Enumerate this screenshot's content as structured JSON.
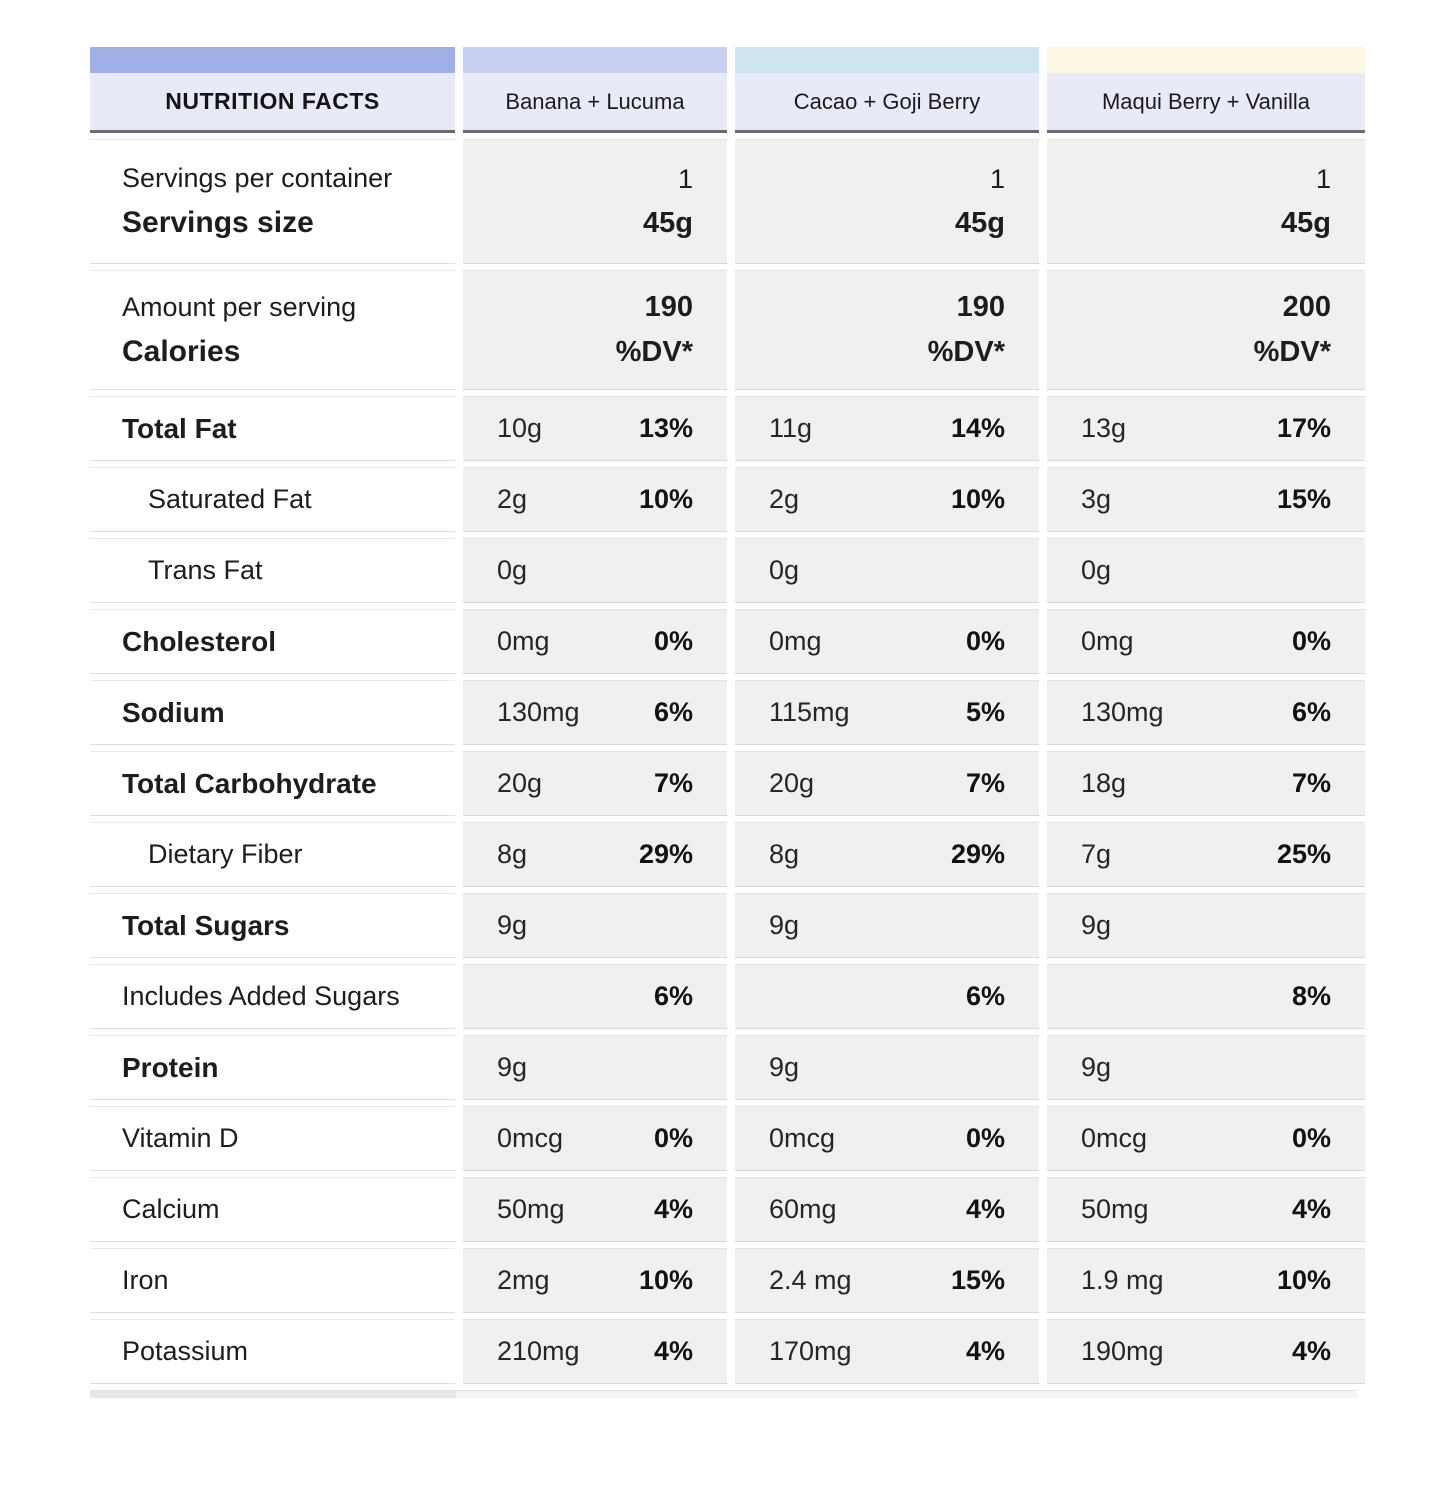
{
  "header": {
    "title": "NUTRITION FACTS",
    "products": [
      "Banana + Lucuma",
      "Cacao + Goji Berry",
      "Maqui Berry + Vanilla"
    ]
  },
  "servings": {
    "label_line1": "Servings per container",
    "label_line2": "Servings size",
    "values": [
      {
        "line1": "1",
        "line2": "45g"
      },
      {
        "line1": "1",
        "line2": "45g"
      },
      {
        "line1": "1",
        "line2": "45g"
      }
    ]
  },
  "calories": {
    "label_line1": "Amount per serving",
    "label_line2": "Calories",
    "values": [
      {
        "line1": "190",
        "line2": "%DV*"
      },
      {
        "line1": "190",
        "line2": "%DV*"
      },
      {
        "line1": "200",
        "line2": "%DV*"
      }
    ]
  },
  "nutrients": [
    {
      "label": "Total Fat",
      "cells": [
        {
          "amount": "10g",
          "dv": "13%"
        },
        {
          "amount": "11g",
          "dv": "14%"
        },
        {
          "amount": "13g",
          "dv": "17%"
        }
      ]
    },
    {
      "label": "Saturated Fat",
      "cells": [
        {
          "amount": "2g",
          "dv": "10%"
        },
        {
          "amount": "2g",
          "dv": "10%"
        },
        {
          "amount": "3g",
          "dv": "15%"
        }
      ]
    },
    {
      "label": "Trans Fat",
      "cells": [
        {
          "amount": "0g",
          "dv": ""
        },
        {
          "amount": "0g",
          "dv": ""
        },
        {
          "amount": "0g",
          "dv": ""
        }
      ]
    },
    {
      "label": "Cholesterol",
      "cells": [
        {
          "amount": "0mg",
          "dv": "0%"
        },
        {
          "amount": "0mg",
          "dv": "0%"
        },
        {
          "amount": "0mg",
          "dv": "0%"
        }
      ]
    },
    {
      "label": "Sodium",
      "cells": [
        {
          "amount": "130mg",
          "dv": "6%"
        },
        {
          "amount": "115mg",
          "dv": "5%"
        },
        {
          "amount": "130mg",
          "dv": "6%"
        }
      ]
    },
    {
      "label": "Total Carbohydrate",
      "cells": [
        {
          "amount": "20g",
          "dv": "7%"
        },
        {
          "amount": "20g",
          "dv": "7%"
        },
        {
          "amount": "18g",
          "dv": "7%"
        }
      ]
    },
    {
      "label": "Dietary Fiber",
      "cells": [
        {
          "amount": "8g",
          "dv": "29%"
        },
        {
          "amount": "8g",
          "dv": "29%"
        },
        {
          "amount": "7g",
          "dv": "25%"
        }
      ]
    },
    {
      "label": "Total Sugars",
      "cells": [
        {
          "amount": "9g",
          "dv": ""
        },
        {
          "amount": "9g",
          "dv": ""
        },
        {
          "amount": "9g",
          "dv": ""
        }
      ]
    },
    {
      "label": "Includes Added Sugars",
      "cells": [
        {
          "amount": "",
          "dv": "6%"
        },
        {
          "amount": "",
          "dv": "6%"
        },
        {
          "amount": "",
          "dv": "8%"
        }
      ]
    },
    {
      "label": "Protein",
      "cells": [
        {
          "amount": "9g",
          "dv": ""
        },
        {
          "amount": "9g",
          "dv": ""
        },
        {
          "amount": "9g",
          "dv": ""
        }
      ]
    },
    {
      "label": "Vitamin D",
      "cells": [
        {
          "amount": "0mcg",
          "dv": "0%"
        },
        {
          "amount": "0mcg",
          "dv": "0%"
        },
        {
          "amount": "0mcg",
          "dv": "0%"
        }
      ]
    },
    {
      "label": "Calcium",
      "cells": [
        {
          "amount": "50mg",
          "dv": "4%"
        },
        {
          "amount": "60mg",
          "dv": "4%"
        },
        {
          "amount": "50mg",
          "dv": "4%"
        }
      ]
    },
    {
      "label": "Iron",
      "cells": [
        {
          "amount": "2mg",
          "dv": "10%"
        },
        {
          "amount": "2.4 mg",
          "dv": "15%"
        },
        {
          "amount": "1.9 mg",
          "dv": "10%"
        }
      ]
    },
    {
      "label": "Potassium",
      "cells": [
        {
          "amount": "210mg",
          "dv": "4%"
        },
        {
          "amount": "170mg",
          "dv": "4%"
        },
        {
          "amount": "190mg",
          "dv": "4%"
        }
      ]
    }
  ],
  "colors": {
    "title_strip": "#a0b0e7",
    "banana_strip": "#c8cff0",
    "cacao_strip": "#cfe3f1",
    "maqui_strip": "#fcf6e2",
    "header_bg": "#e8ebf7",
    "header_underline": "#6b6c70",
    "value_cell_bg": "#f1f0ee"
  }
}
